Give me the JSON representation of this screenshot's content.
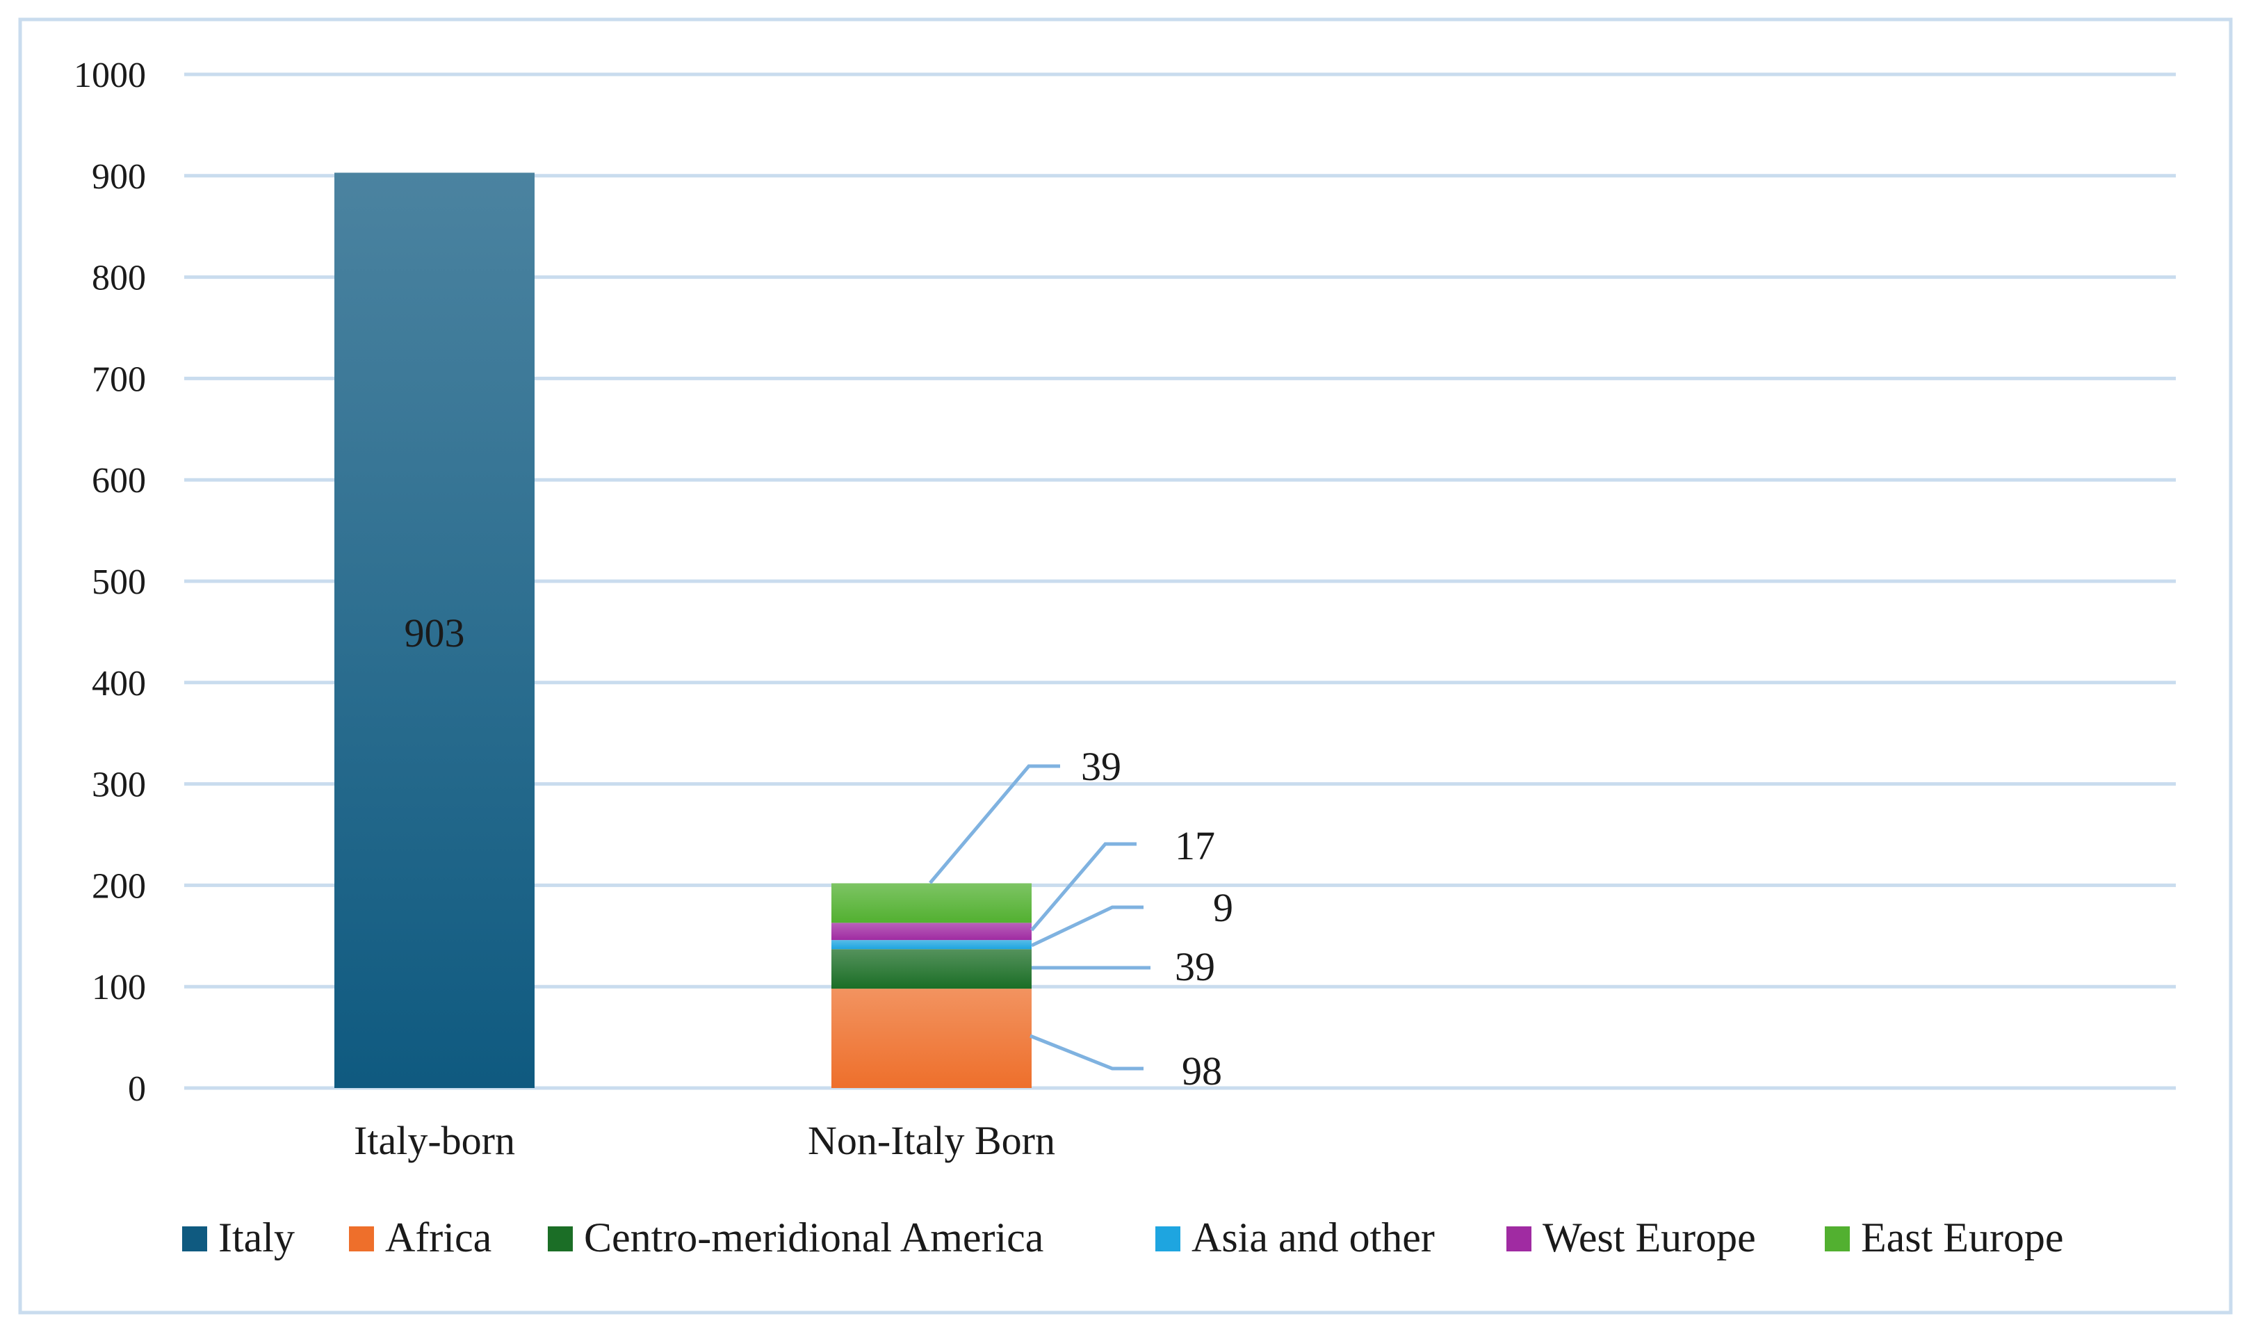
{
  "chart_data": {
    "type": "bar",
    "stacked": true,
    "categories": [
      "Italy-born",
      "Non-Italy Born"
    ],
    "y_ticks": [
      "0",
      "100",
      "200",
      "300",
      "400",
      "500",
      "600",
      "700",
      "800",
      "900",
      "1000"
    ],
    "ylim": [
      0,
      1000
    ],
    "grid": true,
    "legend_position": "bottom",
    "series": [
      {
        "name": "Italy",
        "color": "#0f5a80",
        "values": [
          903,
          0
        ],
        "labels": [
          "903",
          ""
        ]
      },
      {
        "name": "Africa",
        "color": "#ee6f2b",
        "values": [
          0,
          98
        ],
        "labels": [
          "",
          "98"
        ]
      },
      {
        "name": "Centro-meridional America",
        "color": "#1b6e26",
        "values": [
          0,
          39
        ],
        "labels": [
          "",
          "39"
        ]
      },
      {
        "name": "Asia and other",
        "color": "#1ea5e0",
        "values": [
          0,
          9
        ],
        "labels": [
          "",
          "9"
        ]
      },
      {
        "name": "West Europe",
        "color": "#a02ba2",
        "values": [
          0,
          17
        ],
        "labels": [
          "",
          "17"
        ]
      },
      {
        "name": "East Europe",
        "color": "#52b030",
        "values": [
          0,
          39
        ],
        "labels": [
          "",
          "39"
        ]
      }
    ]
  }
}
